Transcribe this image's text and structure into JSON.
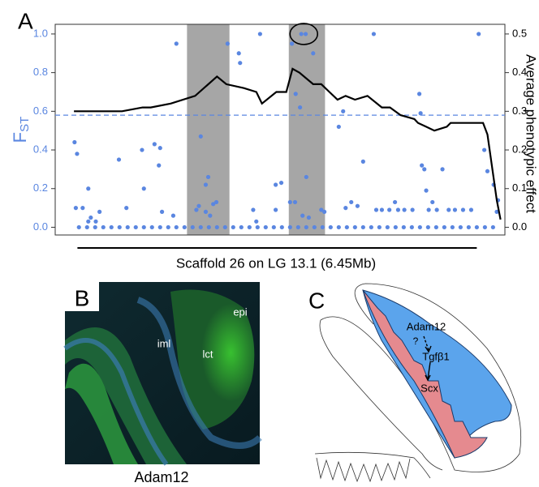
{
  "panel_labels": [
    "A",
    "B",
    "C"
  ],
  "chart_data": {
    "type": "scatter",
    "ylabel": "F",
    "ylabel_subscript": "ST",
    "y2label": "Average phenotypic effect",
    "xlabel": "Scaffold 26 on LG 13.1 (6.45Mb)",
    "xlim": [
      -0.36,
      6.84
    ],
    "ylim": [
      -0.04,
      1.05
    ],
    "y2lim": [
      -0.02,
      0.525
    ],
    "yticks": [
      {
        "value": 0,
        "label": "0.0"
      },
      {
        "value": 0.2,
        "label": "0.2"
      },
      {
        "value": 0.4,
        "label": "0.4"
      },
      {
        "value": 0.6,
        "label": "0.6"
      },
      {
        "value": 0.8,
        "label": "0.8"
      },
      {
        "value": 1,
        "label": "1.0"
      }
    ],
    "y2ticks": [
      {
        "value": 0,
        "label": "0.0"
      },
      {
        "value": 0.1,
        "label": "0.1"
      },
      {
        "value": 0.2,
        "label": "0.2"
      },
      {
        "value": 0.3,
        "label": "0.3"
      },
      {
        "value": 0.4,
        "label": "0.4"
      },
      {
        "value": 0.5,
        "label": "0.5"
      }
    ],
    "threshold": 0.58,
    "highlight_regions": [
      [
        1.75,
        2.43
      ],
      [
        3.38,
        3.96
      ]
    ],
    "circled_point": {
      "x": 3.62,
      "y": 1.0
    },
    "series": [
      {
        "type": "scatter",
        "color": "#5a86e0",
        "x": [
          -0.05,
          -0.01,
          -0.03,
          0.08,
          0.17,
          0.17,
          0.21,
          0.29,
          0.35,
          0.66,
          0.78,
          1.03,
          1.06,
          1.23,
          1.3,
          1.32,
          1.35,
          1.53,
          1.58,
          1.9,
          1.94,
          1.97,
          2.05,
          2.05,
          2.09,
          2.12,
          2.17,
          2.22,
          2.4,
          2.58,
          2.6,
          2.92,
          2.81,
          2.86,
          3.17,
          3.17,
          3.26,
          3.43,
          3.4,
          3.48,
          3.49,
          3.56,
          3.58,
          3.65,
          3.6,
          3.66,
          3.7,
          3.77,
          3.9,
          3.95,
          4.18,
          4.25,
          4.29,
          4.38,
          4.48,
          4.57,
          4.74,
          4.78,
          4.87,
          4.99,
          5.08,
          5.13,
          5.23,
          5.36,
          5.47,
          5.49,
          5.51,
          5.55,
          5.58,
          5.62,
          5.68,
          5.75,
          5.84,
          5.94,
          6.04,
          6.17,
          6.3,
          6.42,
          6.51,
          6.56,
          6.66,
          6.71,
          6.73,
          0.02,
          0.15,
          0.28,
          0.41,
          0.54,
          0.67,
          0.8,
          0.93,
          1.06,
          1.19,
          1.32,
          1.45,
          1.58,
          1.71,
          1.84,
          1.97,
          2.1,
          2.23,
          2.36,
          2.49,
          2.62,
          2.75,
          2.88,
          3.01,
          3.14,
          3.27,
          3.4,
          3.53,
          3.66,
          3.79,
          3.92,
          4.05,
          4.18,
          4.31,
          4.44,
          4.57,
          4.7,
          4.83,
          4.96,
          5.09,
          5.22,
          5.35,
          5.48,
          5.61,
          5.74,
          5.87,
          6.0,
          6.13,
          6.26,
          6.39,
          6.52,
          6.65
        ],
        "values": [
          0.44,
          0.38,
          0.1,
          0.1,
          0.2,
          0.03,
          0.05,
          0.03,
          0.08,
          0.35,
          0.1,
          0.4,
          0.2,
          0.43,
          0.32,
          0.41,
          0.08,
          0.06,
          0.95,
          0.09,
          0.11,
          0.47,
          0.08,
          0.22,
          0.26,
          0.06,
          0.12,
          0.13,
          0.95,
          0.9,
          0.85,
          1.0,
          0.09,
          0.03,
          0.09,
          0.22,
          0.23,
          0.95,
          0.13,
          0.13,
          0.69,
          0.62,
          1.0,
          1.0,
          0.06,
          0.26,
          0.05,
          0.9,
          0.09,
          0.08,
          0.52,
          0.6,
          0.1,
          0.13,
          0.11,
          0.34,
          1.0,
          0.09,
          0.09,
          0.09,
          0.13,
          0.09,
          0.09,
          0.09,
          0.69,
          0.59,
          0.32,
          0.3,
          0.19,
          0.09,
          0.13,
          0.09,
          0.3,
          0.09,
          0.09,
          0.09,
          0.09,
          1.0,
          0.4,
          0.29,
          0.22,
          0.08,
          0.14,
          0,
          0,
          0,
          0,
          0,
          0,
          0,
          0,
          0,
          0,
          0,
          0,
          0,
          0,
          0,
          0,
          0,
          0,
          0,
          0,
          0,
          0,
          0,
          0,
          0,
          0,
          0,
          0,
          0,
          0,
          0,
          0,
          0,
          0,
          0,
          0,
          0,
          0,
          0,
          0,
          0,
          0,
          0,
          0,
          0,
          0,
          0,
          0,
          0,
          0,
          0,
          0
        ]
      },
      {
        "type": "line",
        "color": "#000000",
        "axis": "y2",
        "x": [
          -0.06,
          0.06,
          0.13,
          0.32,
          0.71,
          1.04,
          1.17,
          1.49,
          1.88,
          2.23,
          2.38,
          2.66,
          2.86,
          2.95,
          3.18,
          3.34,
          3.44,
          3.55,
          3.77,
          3.9,
          4.03,
          4.16,
          4.29,
          4.44,
          4.64,
          4.87,
          5.0,
          5.17,
          5.39,
          5.45,
          5.58,
          5.71,
          5.91,
          5.97,
          6.49,
          6.56,
          6.71,
          6.77
        ],
        "values": [
          0.3,
          0.3,
          0.3,
          0.3,
          0.3,
          0.31,
          0.31,
          0.32,
          0.34,
          0.39,
          0.37,
          0.36,
          0.35,
          0.32,
          0.35,
          0.35,
          0.41,
          0.4,
          0.37,
          0.37,
          0.35,
          0.33,
          0.34,
          0.33,
          0.34,
          0.31,
          0.31,
          0.29,
          0.28,
          0.27,
          0.26,
          0.25,
          0.26,
          0.27,
          0.27,
          0.24,
          0.07,
          0.02
        ]
      }
    ]
  },
  "panel_b": {
    "annotations": [
      "epi",
      "iml",
      "lct"
    ],
    "caption": "Adam12"
  },
  "panel_c": {
    "labels": [
      "Adam12",
      "?",
      "Tgfβ1",
      "Scx"
    ]
  }
}
